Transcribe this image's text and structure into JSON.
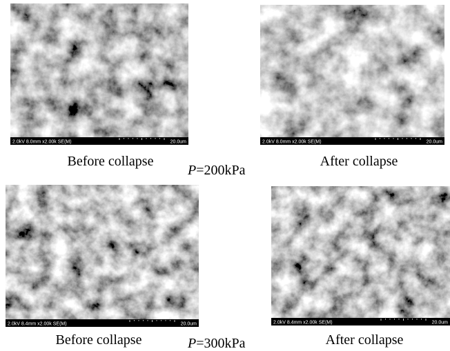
{
  "figure": {
    "panels": [
      {
        "info": "2.0kV 8.0mm x2.00k SE(M)",
        "scale": "20.0um"
      },
      {
        "info": "2.0kV 8.0mm x2.00k SE(M)",
        "scale": "20.0um"
      },
      {
        "info": "2.0kV 8.4mm x2.00k SE(M)",
        "scale": "20.0um"
      },
      {
        "info": "2.0kV 8.4mm x2.00k SE(M)",
        "scale": "20.0um"
      }
    ],
    "rows": [
      {
        "before": "Before collapse",
        "after": "After collapse",
        "pressure": {
          "symbol": "P",
          "value": "=200kPa"
        }
      },
      {
        "before": "Before collapse",
        "after": "After collapse",
        "pressure": {
          "symbol": "P",
          "value": "=300kPa"
        }
      }
    ]
  }
}
